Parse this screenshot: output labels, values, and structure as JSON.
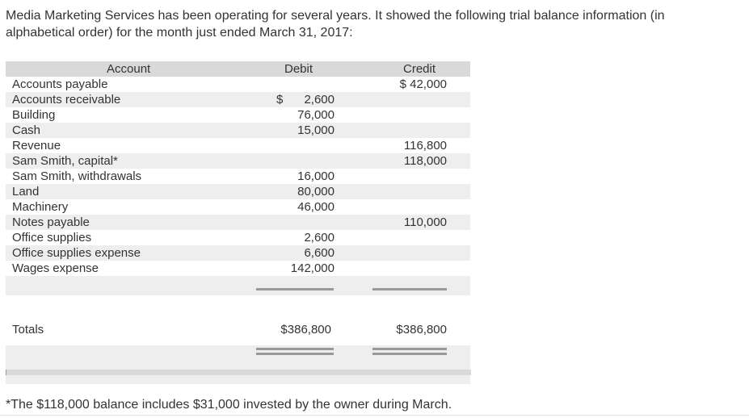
{
  "intro": "Media Marketing Services has been operating for several years. It showed the following trial balance information (in alphabetical order) for the month just ended March 31, 2017:",
  "headers": {
    "account": "Account",
    "debit": "Debit",
    "credit": "Credit"
  },
  "rows": [
    {
      "account": "Accounts payable",
      "debit_sign": "",
      "debit": "",
      "credit": "$ 42,000"
    },
    {
      "account": "Accounts receivable",
      "debit_sign": "$",
      "debit": "2,600",
      "credit": ""
    },
    {
      "account": "Building",
      "debit_sign": "",
      "debit": "76,000",
      "credit": ""
    },
    {
      "account": "Cash",
      "debit_sign": "",
      "debit": "15,000",
      "credit": ""
    },
    {
      "account": "Revenue",
      "debit_sign": "",
      "debit": "",
      "credit": "116,800"
    },
    {
      "account": "Sam Smith, capital*",
      "debit_sign": "",
      "debit": "",
      "credit": "118,000"
    },
    {
      "account": "Sam Smith, withdrawals",
      "debit_sign": "",
      "debit": "16,000",
      "credit": ""
    },
    {
      "account": "Land",
      "debit_sign": "",
      "debit": "80,000",
      "credit": ""
    },
    {
      "account": "Machinery",
      "debit_sign": "",
      "debit": "46,000",
      "credit": ""
    },
    {
      "account": "Notes payable",
      "debit_sign": "",
      "debit": "",
      "credit": "110,000"
    },
    {
      "account": "Office supplies",
      "debit_sign": "",
      "debit": "2,600",
      "credit": ""
    },
    {
      "account": "Office supplies expense",
      "debit_sign": "",
      "debit": "6,600",
      "credit": ""
    },
    {
      "account": "Wages expense",
      "debit_sign": "",
      "debit": "142,000",
      "credit": ""
    }
  ],
  "totals": {
    "label": "Totals",
    "debit": "$386,800",
    "credit": "$386,800"
  },
  "footnote": "*The $118,000 balance includes $31,000 invested by the owner during March."
}
